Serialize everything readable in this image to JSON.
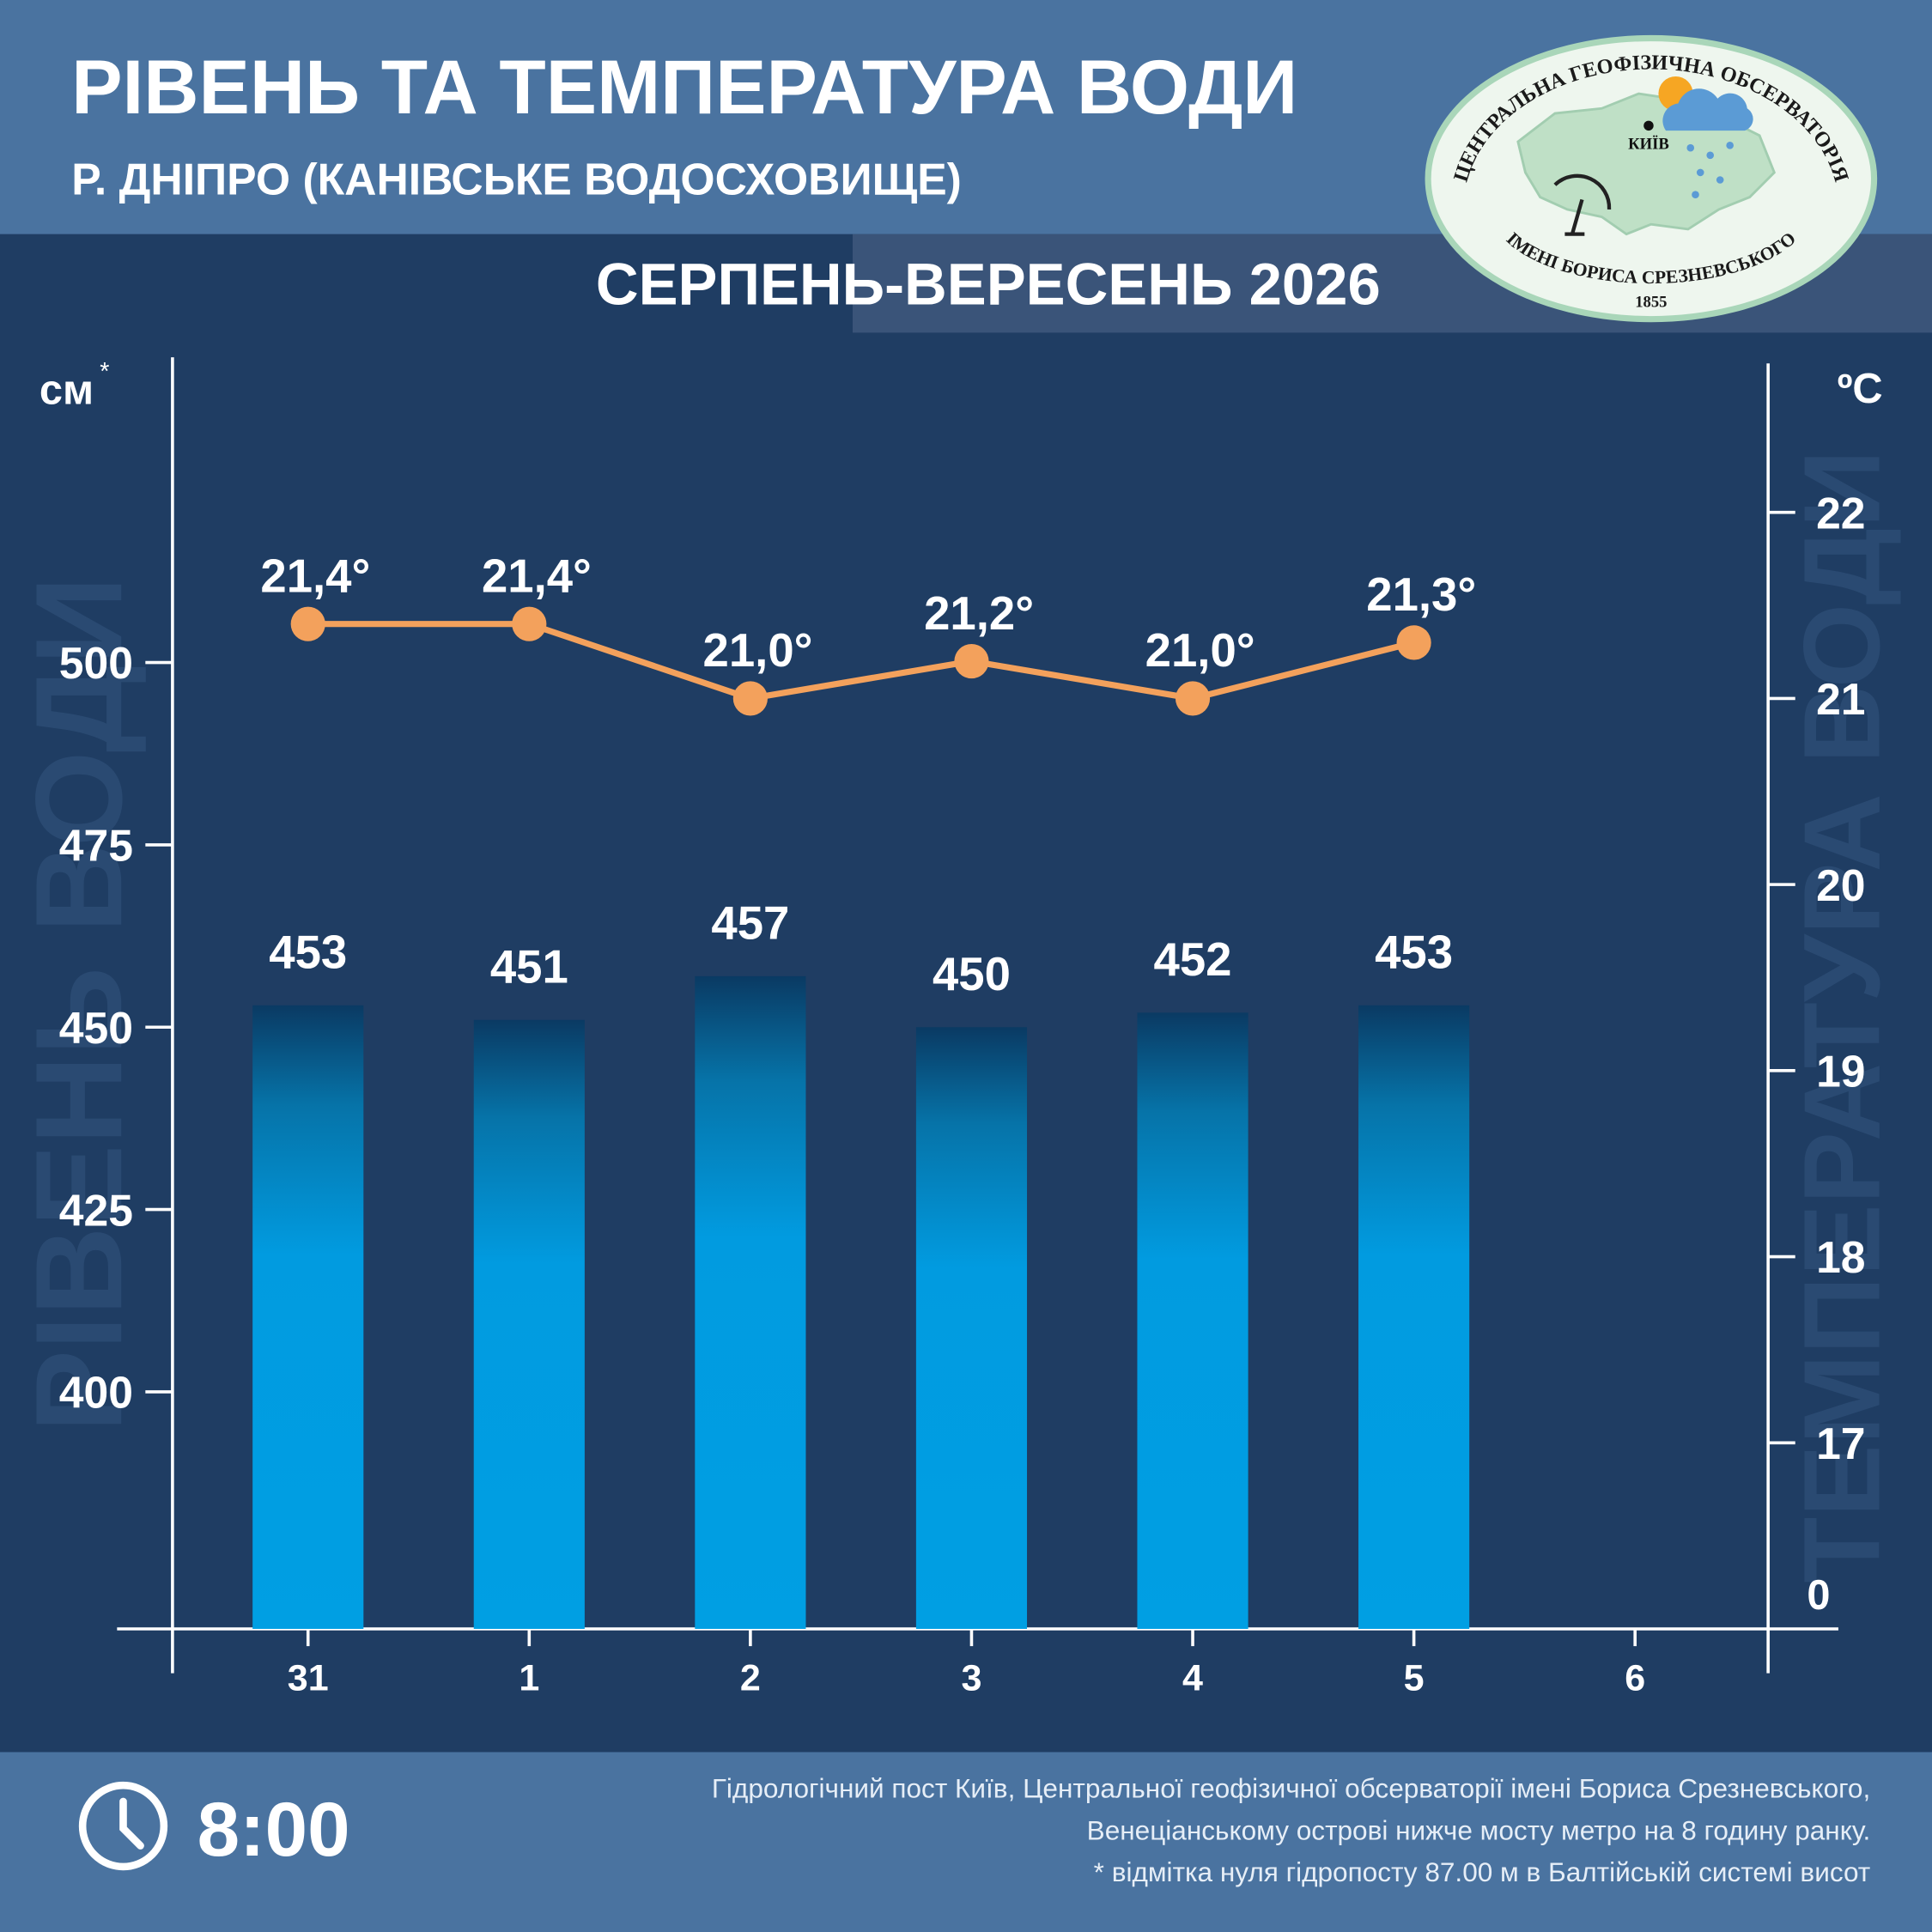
{
  "header": {
    "title": "РІВЕНЬ ТА ТЕМПЕРАТУРА ВОДИ",
    "subtitle": "Р. ДНІПРО (КАНІВСЬКЕ ВОДОСХОВИЩЕ)",
    "period": "СЕРПЕНЬ-ВЕРЕСЕНЬ 2026"
  },
  "logo": {
    "top_text": "ЦЕНТРАЛЬНА ГЕОФІЗИЧНА ОБСЕРВАТОРІЯ",
    "bottom_text": "ІМЕНІ БОРИСА СРЕЗНЕВСЬКОГО",
    "year": "1855",
    "city": "КИЇВ"
  },
  "chart_data": {
    "type": "combo",
    "categories": [
      "31",
      "1",
      "2",
      "3",
      "4",
      "5",
      "6"
    ],
    "y_unit": "см",
    "y_unit_note": "*",
    "y2_unit": "ºC",
    "y_axis_title": "РІВЕНЬ ВОДИ",
    "y2_axis_title": "ТЕМПЕРАТУРА ВОДИ",
    "series": [
      {
        "type": "bar",
        "color": "#009fe3",
        "values": [
          453,
          451,
          457,
          450,
          452,
          453,
          null
        ]
      },
      {
        "type": "line",
        "axis": "y2",
        "color": "#f3a15c",
        "values": [
          21.4,
          21.4,
          21.0,
          21.2,
          21.0,
          21.3,
          null
        ],
        "value_labels": [
          "21,4°",
          "21,4°",
          "21,0°",
          "21,2°",
          "21,0°",
          "21,3°",
          null
        ]
      }
    ],
    "ylim": [
      367.5,
      541
    ],
    "yticks": [
      400,
      425,
      450,
      475,
      500
    ],
    "y2lim": [
      16,
      22.8
    ],
    "y2ticks": [
      17,
      18,
      19,
      20,
      21,
      22
    ],
    "y2_break_label": "0"
  },
  "footer": {
    "time": "8:00",
    "notes": [
      "Гідрологічний пост Київ, Центральної геофізичної обсерваторії імені Бориса Срезневського,",
      "Венеціанському острові нижче мосту метро  на 8 годину ранку.",
      "* відмітка нуля гідропосту 87.00 м в Балтійській системі висот"
    ]
  }
}
